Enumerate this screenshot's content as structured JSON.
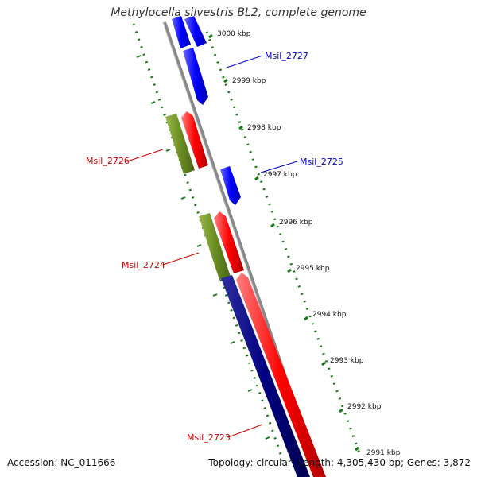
{
  "title": "Methylocella silvestris BL2, complete genome",
  "footer": {
    "accession": "Accession: NC_011666",
    "summary": "Topology: circular; Length: 4,305,430 bp; Genes: 3,872"
  },
  "ticks": [
    {
      "label": "3000 kbp",
      "kbp": 3000
    },
    {
      "label": "2999 kbp",
      "kbp": 2999
    },
    {
      "label": "2998 kbp",
      "kbp": 2998
    },
    {
      "label": "2997 kbp",
      "kbp": 2997
    },
    {
      "label": "2996 kbp",
      "kbp": 2996
    },
    {
      "label": "2995 kbp",
      "kbp": 2995
    },
    {
      "label": "2994 kbp",
      "kbp": 2994
    },
    {
      "label": "2993 kbp",
      "kbp": 2993
    },
    {
      "label": "2992 kbp",
      "kbp": 2992
    },
    {
      "label": "2991 kbp",
      "kbp": 2991
    }
  ],
  "gene_labels": [
    {
      "name": "Msil_2727",
      "color": "#0000cc"
    },
    {
      "name": "Msil_2726",
      "color": "#cc0000"
    },
    {
      "name": "Msil_2725",
      "color": "#0000cc"
    },
    {
      "name": "Msil_2724",
      "color": "#cc0000"
    },
    {
      "name": "Msil_2723",
      "color": "#cc0000"
    }
  ],
  "colors": {
    "backbone": "#888888",
    "ticks": "#1a7a1a",
    "forward_gene": "#0000ff",
    "reverse_gene": "#ff0000",
    "rna_feature": "#6b8e23",
    "dark_feature": "#000080"
  }
}
